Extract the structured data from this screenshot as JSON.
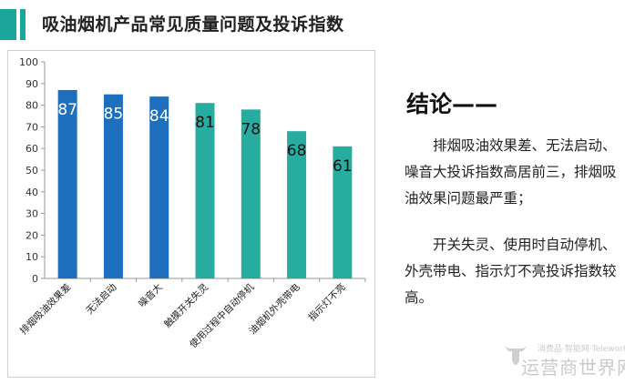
{
  "page": {
    "title": "吸油烟机产品常见质量问题及投诉指数",
    "conclusion_title": "结论——",
    "paragraph1": "排烟吸油效果差、无法启动、噪音大投诉指数高居前三，排烟吸油效果问题最严重；",
    "paragraph2": "开关失灵、使用时自动停机、外壳带电、指示灯不亮投诉指数较高。",
    "watermark_line1": "消费品·智能网·Teleworld",
    "watermark_line2": "运营商世界网",
    "accent_color": "#1aa69a"
  },
  "chart_data": {
    "type": "bar",
    "title": "",
    "xlabel": "",
    "ylabel": "",
    "ylim": [
      0,
      100
    ],
    "yticks": [
      0,
      10,
      20,
      30,
      40,
      50,
      60,
      70,
      80,
      90,
      100
    ],
    "grid": false,
    "categories": [
      "排烟吸油效果差",
      "无法启动",
      "噪音大",
      "触摸开关失灵",
      "使用过程中自动停机",
      "油烟机外壳带电",
      "指示灯不亮"
    ],
    "values": [
      87,
      85,
      84,
      81,
      78,
      68,
      61
    ],
    "bar_colors": [
      "#1f6fbf",
      "#1f6fbf",
      "#1f6fbf",
      "#26ada0",
      "#26ada0",
      "#26ada0",
      "#26ada0"
    ],
    "label_colors": [
      "#ffffff",
      "#ffffff",
      "#ffffff",
      "#111111",
      "#111111",
      "#111111",
      "#111111"
    ]
  }
}
